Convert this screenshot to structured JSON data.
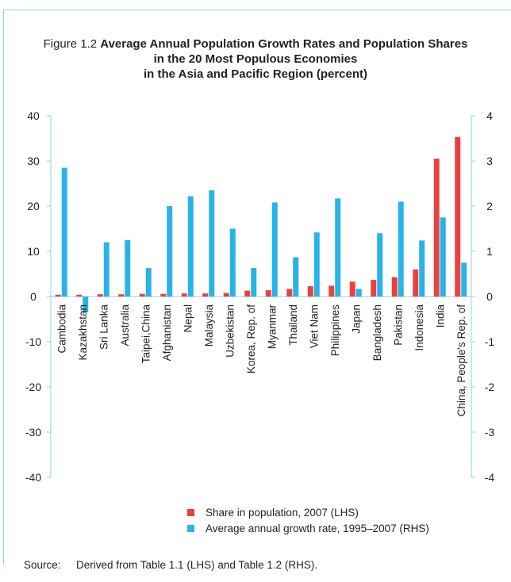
{
  "title": {
    "prefix": "Figure 1.2",
    "line1": "Average Annual Population Growth Rates and Population Shares",
    "line2": "in the 20 Most Populous Economies",
    "line3": "in the Asia and Pacific Region (percent)"
  },
  "legend": [
    {
      "label": "Share in population, 2007 (LHS)",
      "color": "#e8423f"
    },
    {
      "label": "Average annual growth rate, 1995–2007 (RHS)",
      "color": "#29b3e6"
    }
  ],
  "source": {
    "label": "Source:",
    "text": "Derived from Table 1.1 (LHS) and Table 1.2 (RHS)."
  },
  "chart_data": {
    "type": "bar",
    "categories": [
      "Cambodia",
      "Kazakhstan",
      "Sri Lanka",
      "Australia",
      "Taipei,China",
      "Afghanistan",
      "Nepal",
      "Malaysia",
      "Uzbekistan",
      "Korea, Rep. of",
      "Myanmar",
      "Thailand",
      "Viet Nam",
      "Philippines",
      "Japan",
      "Bangladesh",
      "Pakistan",
      "Indonesia",
      "India",
      "China, People's Rep. of"
    ],
    "series": [
      {
        "name": "Share in population, 2007 (LHS)",
        "axis": "left",
        "color": "#e8423f",
        "values": [
          0.4,
          0.4,
          0.5,
          0.5,
          0.6,
          0.6,
          0.7,
          0.7,
          0.8,
          1.3,
          1.4,
          1.7,
          2.3,
          2.4,
          3.3,
          3.7,
          4.3,
          6.0,
          30.5,
          35.3
        ]
      },
      {
        "name": "Average annual growth rate, 1995–2007 (RHS)",
        "axis": "right",
        "color": "#29b3e6",
        "values": [
          2.85,
          -0.35,
          1.2,
          1.25,
          0.63,
          2.0,
          2.22,
          2.35,
          1.5,
          0.63,
          2.08,
          0.87,
          1.42,
          2.17,
          0.17,
          1.4,
          2.1,
          1.24,
          1.75,
          0.75
        ]
      }
    ],
    "ylim_left": [
      -40,
      40
    ],
    "ylim_right": [
      -4,
      4
    ],
    "yticks_left": [
      "40",
      "30",
      "20",
      "10",
      "0",
      "-10",
      "-20",
      "-30",
      "-40"
    ],
    "yticks_right": [
      "4",
      "3",
      "2",
      "1",
      "0",
      "-1",
      "-2",
      "-3",
      "-4"
    ],
    "grid": false,
    "legend_position": "bottom"
  }
}
